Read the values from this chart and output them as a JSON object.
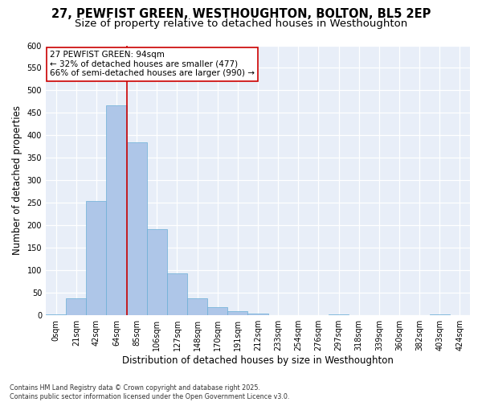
{
  "title_line1": "27, PEWFIST GREEN, WESTHOUGHTON, BOLTON, BL5 2EP",
  "title_line2": "Size of property relative to detached houses in Westhoughton",
  "xlabel": "Distribution of detached houses by size in Westhoughton",
  "ylabel": "Number of detached properties",
  "categories": [
    "0sqm",
    "21sqm",
    "42sqm",
    "64sqm",
    "85sqm",
    "106sqm",
    "127sqm",
    "148sqm",
    "170sqm",
    "191sqm",
    "212sqm",
    "233sqm",
    "254sqm",
    "276sqm",
    "297sqm",
    "318sqm",
    "339sqm",
    "360sqm",
    "382sqm",
    "403sqm",
    "424sqm"
  ],
  "values": [
    3,
    38,
    255,
    467,
    385,
    192,
    93,
    38,
    18,
    10,
    4,
    1,
    0,
    0,
    2,
    0,
    0,
    0,
    0,
    2,
    0
  ],
  "bar_color": "#aec6e8",
  "bar_edge_color": "#6aaed6",
  "background_color": "#e8eef8",
  "grid_color": "#ffffff",
  "vline_color": "#cc0000",
  "vline_x": 3.5,
  "annotation_text": "27 PEWFIST GREEN: 94sqm\n← 32% of detached houses are smaller (477)\n66% of semi-detached houses are larger (990) →",
  "annotation_box_color": "#ffffff",
  "annotation_box_edge": "#cc0000",
  "ylim": [
    0,
    600
  ],
  "yticks": [
    0,
    50,
    100,
    150,
    200,
    250,
    300,
    350,
    400,
    450,
    500,
    550,
    600
  ],
  "fig_background": "#ffffff",
  "footnote": "Contains HM Land Registry data © Crown copyright and database right 2025.\nContains public sector information licensed under the Open Government Licence v3.0.",
  "title_fontsize": 10.5,
  "subtitle_fontsize": 9.5,
  "tick_fontsize": 7,
  "ylabel_fontsize": 8.5,
  "xlabel_fontsize": 8.5,
  "annotation_fontsize": 7.5,
  "footnote_fontsize": 5.8
}
